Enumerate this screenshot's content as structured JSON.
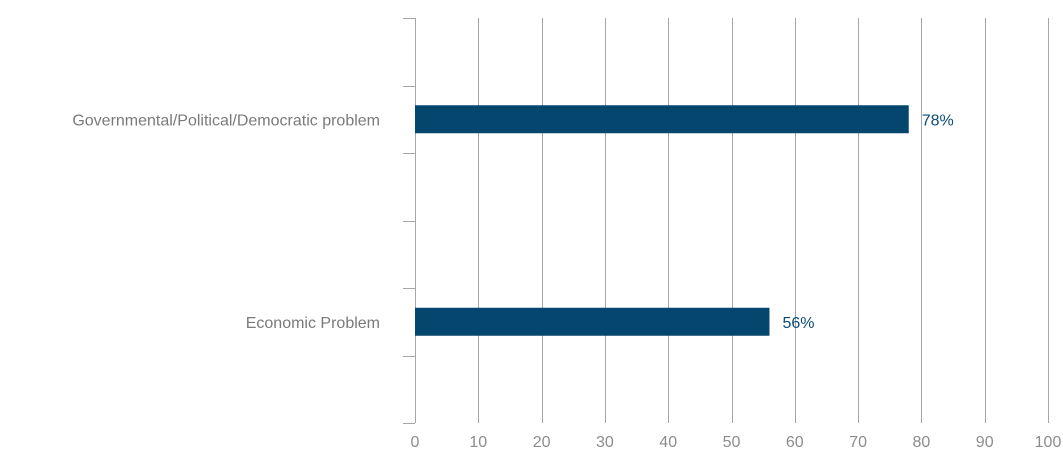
{
  "chart_data": {
    "type": "bar",
    "orientation": "horizontal",
    "categories": [
      "Governmental/Political/Democratic problem",
      "Economic Problem"
    ],
    "values": [
      78,
      56
    ],
    "value_labels": [
      "78%",
      "56%"
    ],
    "title": "",
    "xlabel": "",
    "ylabel": "",
    "xlim": [
      0,
      100
    ],
    "xticks": [
      0,
      10,
      20,
      30,
      40,
      50,
      60,
      70,
      80,
      90,
      100
    ],
    "xtick_labels": [
      "0",
      "10",
      "20",
      "30",
      "40",
      "50",
      "60",
      "70",
      "80",
      "90",
      "100"
    ],
    "grid": true,
    "legend": "none",
    "colors": {
      "bar": "#05466f",
      "value_label": "#0b4a75",
      "grid": "#a6a6a6",
      "axis_text": "#8c8c8c"
    }
  }
}
